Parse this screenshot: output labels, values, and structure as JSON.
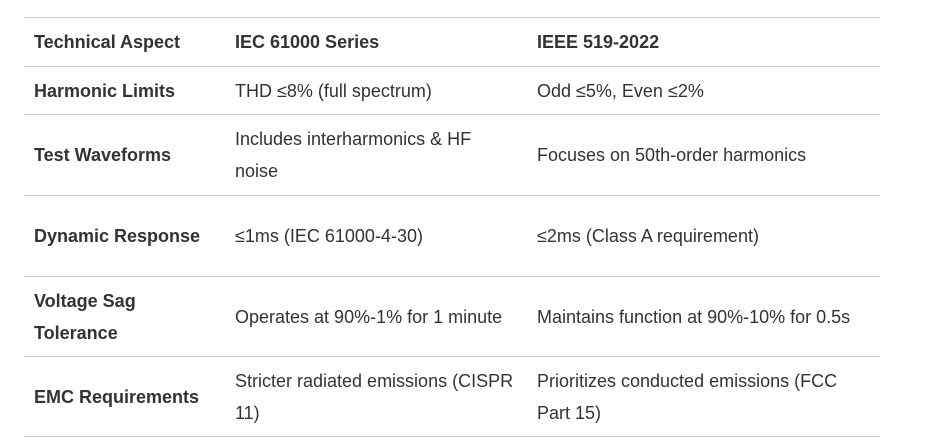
{
  "table": {
    "headers": [
      "Technical Aspect",
      "IEC 61000 Series",
      "IEEE 519-2022"
    ],
    "rows": [
      [
        "Harmonic Limits",
        "THD ≤8% (full spectrum)",
        "Odd ≤5%, Even ≤2%"
      ],
      [
        "Test Waveforms",
        "Includes interharmonics & HF noise",
        "Focuses on 50th-order harmonics"
      ],
      [
        "Dynamic Response",
        "≤1ms (IEC 61000-4-30)",
        "≤2ms (Class A requirement)"
      ],
      [
        "Voltage Sag Tolerance",
        "Operates at 90%-1% for 1 minute",
        "Maintains function at 90%-10% for 0.5s"
      ],
      [
        "EMC Requirements",
        "Stricter radiated emissions (CISPR 11)",
        "Prioritizes conducted emissions (FCC Part 15)"
      ]
    ]
  }
}
